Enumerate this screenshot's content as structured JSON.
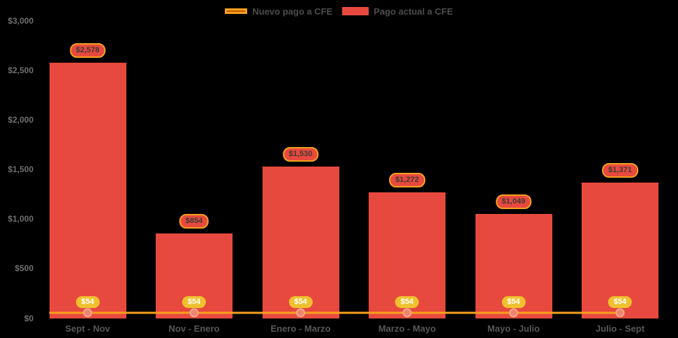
{
  "colors": {
    "background": "#000000",
    "bar": "#E8493E",
    "line": "#F7A01D",
    "marker_fill": "#F1826E",
    "marker_stroke": "#F5A98C",
    "value_badge_bg": "#E8493E",
    "value_badge_border": "#F5A01D",
    "value_badge_text": "#3E3B35",
    "gold_badge_bg": "#EFC12F",
    "gold_badge_text": "#FFFFFF",
    "legend_swatch_line_fill": "#C25702",
    "legend_swatch_line_border": "#F5A01D",
    "legend_text": "#4D4D4D",
    "y_label_text": "#6F6F6F",
    "x_label_text": "#585858"
  },
  "y_axis": {
    "ticks": [
      "$3,000",
      "$2,500",
      "$2,000",
      "$1,500",
      "$1,000",
      "$500",
      "$0"
    ],
    "tick_values": [
      3000,
      2500,
      2000,
      1500,
      1000,
      500,
      0
    ]
  },
  "chart_data": {
    "type": "bar",
    "subtype": "bar-with-line-overlay",
    "categories": [
      "Sept - Nov",
      "Nov - Enero",
      "Enero - Marzo",
      "Marzo - Mayo",
      "Mayo - Julio",
      "Julio - Sept"
    ],
    "series": [
      {
        "name": "Pago actual a CFE",
        "type": "bar",
        "color": "#E8493E",
        "values": [
          2578,
          854,
          1530,
          1272,
          1049,
          1371
        ],
        "labels": [
          "$2,578",
          "$854",
          "$1,530",
          "$1,272",
          "$1,049",
          "$1,371"
        ]
      },
      {
        "name": "Nuevo pago a CFE",
        "type": "line",
        "color": "#F7A01D",
        "values": [
          54,
          54,
          54,
          54,
          54,
          54
        ],
        "labels": [
          "$54",
          "$54",
          "$54",
          "$54",
          "$54",
          "$54"
        ]
      }
    ],
    "ylim": [
      0,
      3000
    ],
    "ylabel": "",
    "xlabel": "",
    "grid": false,
    "legend_position": "top"
  }
}
